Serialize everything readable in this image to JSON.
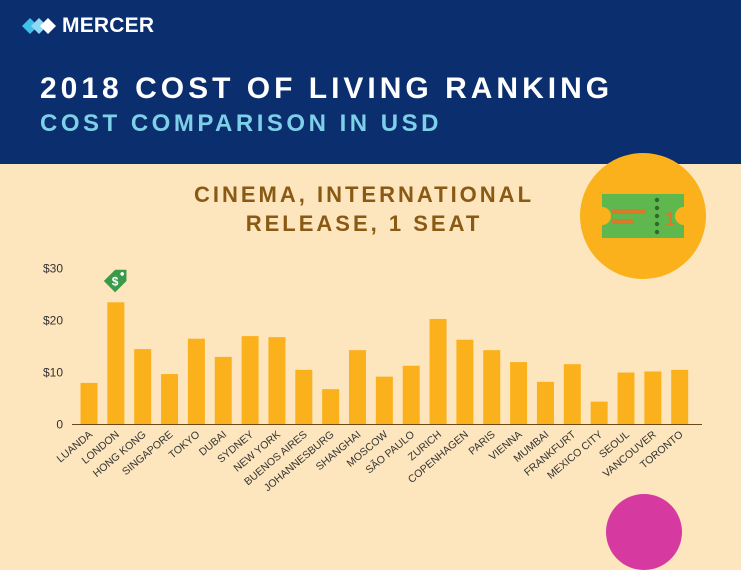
{
  "header": {
    "logo_text": "MERCER",
    "title": "2018 COST OF LIVING RANKING",
    "subtitle": "COST COMPARISON IN USD"
  },
  "colors": {
    "header_bg": "#0a2e6e",
    "background": "#fde6be",
    "bar": "#fbb11c",
    "title_text": "#8a5a14",
    "subtitle_text": "#7ecfe8",
    "price_tag": "#3a9a4a",
    "badge": "#fbb11c",
    "pink_circle": "#d63aa0"
  },
  "icons": {
    "logo": "mercer-logo-icon",
    "ticket": "ticket-icon",
    "price_tag": "dollar-price-tag-icon"
  },
  "chart_data": {
    "type": "bar",
    "title_lines": [
      "CINEMA, INTERNATIONAL",
      "RELEASE, 1 SEAT"
    ],
    "categories": [
      "LUANDA",
      "LONDON",
      "HONG KONG",
      "SINGAPORE",
      "TOKYO",
      "DUBAI",
      "SYDNEY",
      "NEW YORK",
      "BUENOS AIRES",
      "JOHANNESBURG",
      "SHANGHAI",
      "MOSCOW",
      "SÃO PAULO",
      "ZURICH",
      "COPENHAGEN",
      "PARIS",
      "VIENNA",
      "MUMBAI",
      "FRANKFURT",
      "MEXICO CITY",
      "SEOUL",
      "VANCOUVER",
      "TORONTO"
    ],
    "values": [
      8,
      23.5,
      14.5,
      9.7,
      16.5,
      13,
      17,
      16.8,
      10.5,
      6.8,
      14.3,
      9.2,
      11.3,
      20.3,
      16.3,
      14.3,
      12,
      8.2,
      11.6,
      4.4,
      10,
      10.2,
      10.5
    ],
    "y_ticks": [
      "$30",
      "$20",
      "$10",
      "0"
    ],
    "ylim": [
      0,
      30
    ],
    "highlight_index": 1,
    "badge_number": "1"
  }
}
